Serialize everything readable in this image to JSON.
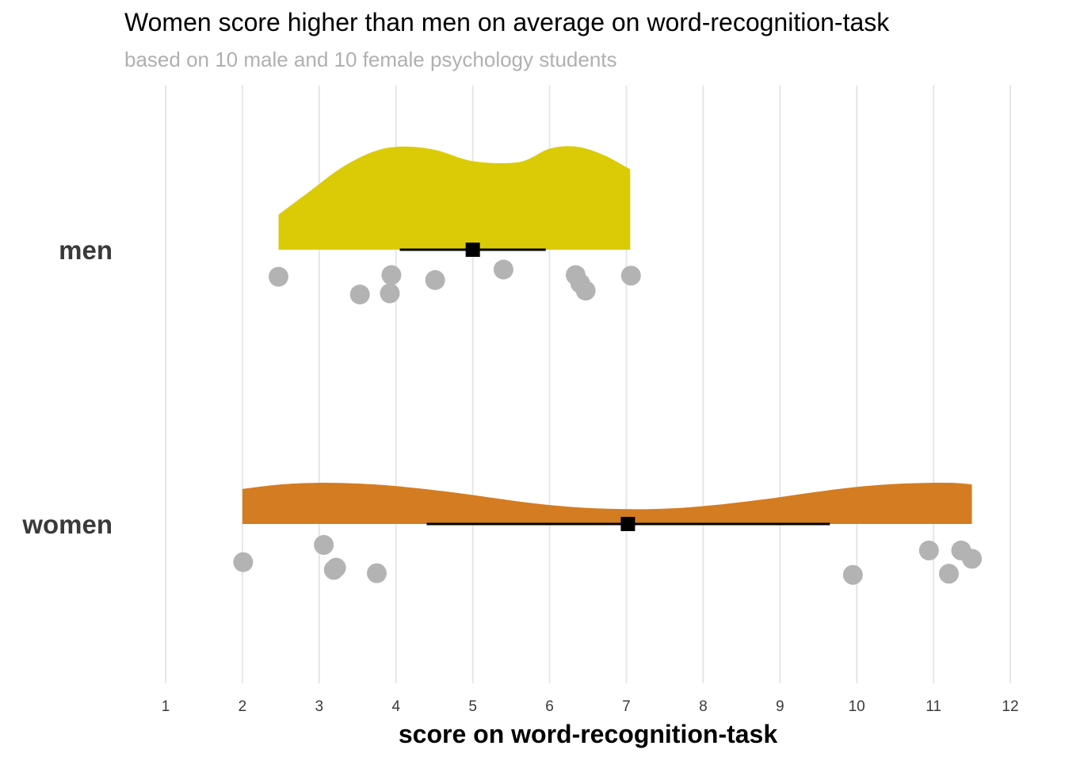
{
  "chart_data": {
    "type": "raincloud",
    "title": "Women score higher than men on average on word-recognition-task",
    "subtitle": "based on 10 male and 10 female psychology students",
    "xlabel": "score on word-recognition-task",
    "ylabel": "",
    "xlim": [
      1,
      12
    ],
    "xticks": [
      "1",
      "2",
      "3",
      "4",
      "5",
      "6",
      "7",
      "8",
      "9",
      "10",
      "11",
      "12"
    ],
    "grid": true,
    "point_color": "#b3b3b3",
    "groups": [
      {
        "name": "men",
        "color": "#dbcb06",
        "mean": 5.0,
        "interval": [
          4.05,
          5.95
        ],
        "density": {
          "x": [
            2.47,
            2.9,
            3.3,
            3.7,
            4.05,
            4.5,
            5.0,
            5.6,
            6.0,
            6.35,
            6.7,
            7.05
          ],
          "y": [
            0.34,
            0.58,
            0.8,
            0.95,
            1.0,
            0.97,
            0.86,
            0.85,
            0.98,
            1.0,
            0.92,
            0.78
          ]
        },
        "points": {
          "x": [
            2.47,
            3.53,
            3.92,
            3.94,
            4.51,
            5.4,
            6.34,
            6.4,
            6.47,
            7.06
          ],
          "jitter": [
            0.23,
            0.55,
            0.53,
            0.2,
            0.29,
            0.1,
            0.2,
            0.35,
            0.48,
            0.21
          ]
        }
      },
      {
        "name": "women",
        "color": "#d47c21",
        "mean": 7.02,
        "interval": [
          4.4,
          9.65
        ],
        "density": {
          "x": [
            2.0,
            2.5,
            3.0,
            3.5,
            4.0,
            4.6,
            5.2,
            5.8,
            6.4,
            7.0,
            7.6,
            8.2,
            8.8,
            9.4,
            10.0,
            10.6,
            11.2,
            11.5
          ],
          "y": [
            0.85,
            0.96,
            1.0,
            0.98,
            0.92,
            0.8,
            0.65,
            0.5,
            0.4,
            0.36,
            0.38,
            0.47,
            0.6,
            0.76,
            0.9,
            0.98,
            1.0,
            0.96
          ]
        },
        "points": {
          "x": [
            2.01,
            3.06,
            3.19,
            3.22,
            3.75,
            9.95,
            10.94,
            11.2,
            11.36,
            11.5
          ],
          "jitter": [
            0.43,
            0.12,
            0.57,
            0.53,
            0.63,
            0.66,
            0.22,
            0.64,
            0.22,
            0.37
          ]
        }
      }
    ]
  }
}
